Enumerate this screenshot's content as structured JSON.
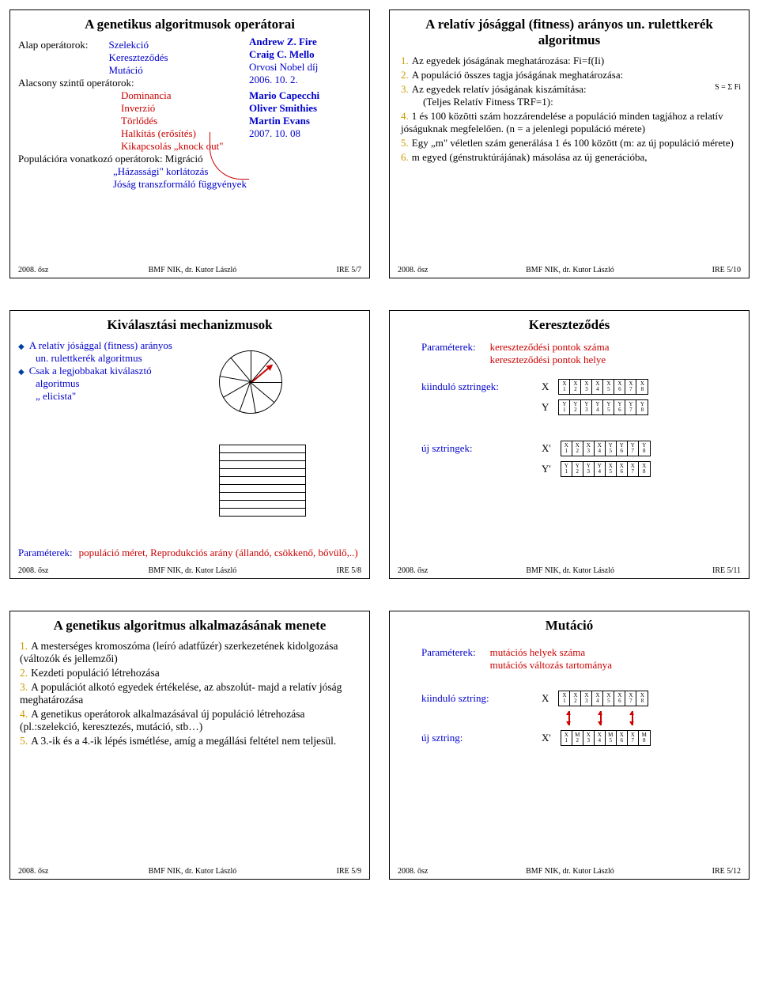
{
  "footer": {
    "left": "2008. ősz",
    "mid": "BMF NIK,   dr. Kutor László"
  },
  "slides": {
    "s1": {
      "title": "A genetikus algoritmusok operátorai",
      "labels": {
        "alap": "Alap operátorok:",
        "szel": "Szelekció",
        "ker": "Kereszteződés",
        "mut": "Mutáció",
        "alacs": "Alacsony szintű operátorok:",
        "dom": "Dominancia",
        "inv": "Inverzió",
        "torl": "Törlődés",
        "halk": "Halkítás (erősítés)",
        "kik": "Kikapcsolás „knock out\"",
        "pop": "Populációra vonatkozó operátorok: Migráció",
        "haz": "„Házassági\" korlátozás",
        "jos": "Jóság transzformáló függvények"
      },
      "nobel": {
        "a": "Andrew Z. Fire",
        "b": "Craig C. Mello",
        "c": "Orvosi Nobel díj",
        "d": "2006. 10. 2.",
        "e": "Mario Capecchi",
        "f": "Oliver Smithies",
        "g": "Martin Evans",
        "h": "2007. 10. 08"
      },
      "page": "IRE 5/7"
    },
    "s2": {
      "title": "A relatív jósággal (fitness) arányos un. rulettkerék algoritmus",
      "items": {
        "i1": "Az egyedek jóságának meghatározása: Fi=f(Ii)",
        "i2": "A populáció összes tagja jóságának meghatározása:",
        "i3": "Az egyedek relatív jóságának kiszámítása:",
        "i3b": "(Teljes Relatív Fitness TRF=1):",
        "i4": "1 és 100 közötti szám hozzárendelése a populáció minden tagjához a relatív jóságuknak megfelelően. (n = a jelenlegi populáció mérete)",
        "i5": "Egy „m\" véletlen szám generálása 1 és 100 között (m: az új populáció mérete)",
        "i6": "m egyed (génstruktúrájának) másolása az új generációba,"
      },
      "formula": "S = Σ Fi",
      "page": "IRE 5/10"
    },
    "s3": {
      "title": "Kiválasztási mechanizmusok",
      "b1": "A relatív jósággal (fitness) arányos",
      "b1b": "un. rulettkerék algoritmus",
      "b2": "Csak a legjobbakat kiválasztó",
      "b2b": "algoritmus",
      "b2c": "„ elicista\"",
      "param_l": "Paraméterek:",
      "param_r": "populáció méret, Reprodukciós arány (állandó, csökkenő, bővülő,..)",
      "page": "IRE 5/8"
    },
    "s4": {
      "title": "Kereszteződés",
      "param_l": "Paraméterek:",
      "param_r1": "kereszteződési pontok száma",
      "param_r2": "kereszteződési pontok helye",
      "kiindulo": "kiinduló sztringek:",
      "uj": "új sztringek:",
      "rows": {
        "X": {
          "letter": "X",
          "top": [
            "X",
            "X",
            "X",
            "X",
            "X",
            "X",
            "X",
            "X"
          ],
          "bot": [
            "1",
            "2",
            "3",
            "4",
            "5",
            "6",
            "7",
            "8"
          ]
        },
        "Y": {
          "letter": "Y",
          "top": [
            "Y",
            "Y",
            "Y",
            "Y",
            "Y",
            "Y",
            "Y",
            "Y"
          ],
          "bot": [
            "1",
            "2",
            "3",
            "4",
            "5",
            "6",
            "7",
            "8"
          ]
        },
        "Xp": {
          "letter": "X'",
          "top": [
            "X",
            "X",
            "X",
            "X",
            "Y",
            "Y",
            "Y",
            "Y"
          ],
          "bot": [
            "1",
            "2",
            "3",
            "4",
            "5",
            "6",
            "7",
            "8"
          ]
        },
        "Yp": {
          "letter": "Y'",
          "top": [
            "Y",
            "Y",
            "Y",
            "Y",
            "X",
            "X",
            "X",
            "X"
          ],
          "bot": [
            "1",
            "2",
            "3",
            "4",
            "5",
            "6",
            "7",
            "8"
          ]
        }
      },
      "page": "IRE 5/11"
    },
    "s5": {
      "title": "A genetikus algoritmus alkalmazásának menete",
      "items": {
        "i1": "A mesterséges kromoszóma (leíró adatfűzér) szerkezetének kidolgozása (változók és jellemzői)",
        "i2": "Kezdeti populáció létrehozása",
        "i3": "A populációt alkotó egyedek értékelése, az abszolút- majd a relatív jóság meghatározása",
        "i4": "A genetikus operátorok alkalmazásával új populáció létrehozása (pl.:szelekció, keresztezés, mutáció, stb…)",
        "i5": "A 3.-ik és a 4.-ik lépés ismétlése, amíg a megállási feltétel nem teljesül."
      },
      "page": "IRE 5/9"
    },
    "s6": {
      "title": "Mutáció",
      "param_l": "Paraméterek:",
      "param_r1": "mutációs helyek száma",
      "param_r2": "mutációs változás tartománya",
      "kiindulo": "kiinduló sztring:",
      "uj": "új sztring:",
      "rows": {
        "X": {
          "letter": "X",
          "top": [
            "X",
            "X",
            "X",
            "X",
            "X",
            "X",
            "X",
            "X"
          ],
          "bot": [
            "1",
            "2",
            "3",
            "4",
            "5",
            "6",
            "7",
            "8"
          ]
        },
        "Xp": {
          "letter": "X'",
          "top": [
            "X",
            "M",
            "X",
            "X",
            "M",
            "X",
            "X",
            "M"
          ],
          "bot": [
            "1",
            "2",
            "3",
            "4",
            "5",
            "6",
            "7",
            "8"
          ]
        }
      },
      "page": "IRE 5/12"
    }
  },
  "wheel": {
    "angles": [
      0,
      40,
      80,
      110,
      150,
      190,
      230,
      270,
      310
    ]
  }
}
